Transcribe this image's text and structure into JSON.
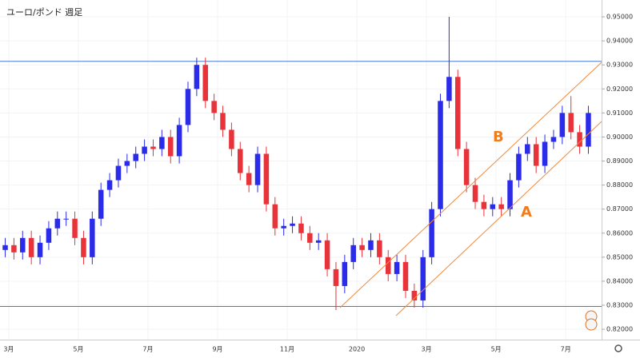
{
  "chart_data": {
    "type": "candlestick",
    "title": "ユーロ/ポンド 週足",
    "annotations": [
      "B",
      "A"
    ],
    "x": [
      1.9,
      2.15,
      2.4,
      2.65,
      2.9,
      3.15,
      3.4,
      3.65,
      3.9,
      4.15,
      4.4,
      4.65,
      4.9,
      5.15,
      5.4,
      5.65,
      5.9,
      6.15,
      6.4,
      6.65,
      6.9,
      7.15,
      7.4,
      7.65,
      7.9,
      8.15,
      8.4,
      8.65,
      8.9,
      9.15,
      9.4,
      9.65,
      9.9,
      10.15,
      10.4,
      10.65,
      10.9,
      11.15,
      11.4,
      11.65,
      11.9,
      12.15,
      12.4,
      12.65,
      12.9,
      13.15,
      13.4,
      13.65,
      13.9,
      14.15,
      14.4,
      14.65,
      14.9,
      15.15,
      15.4,
      15.65,
      15.9,
      16.15,
      16.4,
      16.65,
      16.9,
      17.15,
      17.4,
      17.65,
      17.9,
      18.15,
      18.4,
      18.65
    ],
    "open": [
      0.853,
      0.855,
      0.852,
      0.858,
      0.85,
      0.856,
      0.862,
      0.866,
      0.866,
      0.858,
      0.85,
      0.866,
      0.878,
      0.882,
      0.888,
      0.89,
      0.893,
      0.896,
      0.895,
      0.9,
      0.892,
      0.905,
      0.92,
      0.93,
      0.915,
      0.91,
      0.903,
      0.895,
      0.885,
      0.88,
      0.893,
      0.872,
      0.862,
      0.863,
      0.864,
      0.86,
      0.856,
      0.857,
      0.845,
      0.838,
      0.848,
      0.855,
      0.853,
      0.857,
      0.85,
      0.843,
      0.848,
      0.836,
      0.832,
      0.85,
      0.87,
      0.915,
      0.925,
      0.895,
      0.88,
      0.873,
      0.87,
      0.872,
      0.87,
      0.882,
      0.893,
      0.897,
      0.888,
      0.898,
      0.9,
      0.91,
      0.902,
      0.896
    ],
    "high": [
      0.858,
      0.858,
      0.861,
      0.861,
      0.859,
      0.865,
      0.869,
      0.869,
      0.869,
      0.861,
      0.869,
      0.881,
      0.885,
      0.891,
      0.893,
      0.896,
      0.899,
      0.899,
      0.903,
      0.903,
      0.908,
      0.923,
      0.933,
      0.933,
      0.918,
      0.913,
      0.906,
      0.898,
      0.888,
      0.896,
      0.896,
      0.875,
      0.866,
      0.867,
      0.867,
      0.863,
      0.86,
      0.86,
      0.848,
      0.851,
      0.858,
      0.858,
      0.86,
      0.86,
      0.853,
      0.851,
      0.851,
      0.839,
      0.853,
      0.873,
      0.918,
      0.95,
      0.928,
      0.898,
      0.883,
      0.876,
      0.875,
      0.875,
      0.885,
      0.896,
      0.9,
      0.9,
      0.901,
      0.903,
      0.913,
      0.917,
      0.905,
      0.913
    ],
    "low": [
      0.85,
      0.849,
      0.849,
      0.847,
      0.847,
      0.853,
      0.859,
      0.863,
      0.855,
      0.847,
      0.847,
      0.863,
      0.875,
      0.879,
      0.885,
      0.887,
      0.89,
      0.892,
      0.892,
      0.889,
      0.889,
      0.902,
      0.917,
      0.912,
      0.907,
      0.9,
      0.892,
      0.882,
      0.877,
      0.877,
      0.869,
      0.859,
      0.859,
      0.86,
      0.857,
      0.853,
      0.853,
      0.842,
      0.828,
      0.835,
      0.845,
      0.85,
      0.85,
      0.847,
      0.84,
      0.84,
      0.833,
      0.829,
      0.829,
      0.847,
      0.867,
      0.912,
      0.892,
      0.877,
      0.87,
      0.867,
      0.867,
      0.867,
      0.867,
      0.879,
      0.89,
      0.885,
      0.885,
      0.895,
      0.897,
      0.899,
      0.893,
      0.893
    ],
    "close": [
      0.855,
      0.852,
      0.858,
      0.85,
      0.856,
      0.862,
      0.866,
      0.866,
      0.858,
      0.85,
      0.866,
      0.878,
      0.882,
      0.888,
      0.89,
      0.893,
      0.896,
      0.895,
      0.9,
      0.892,
      0.905,
      0.92,
      0.93,
      0.915,
      0.91,
      0.903,
      0.895,
      0.885,
      0.88,
      0.893,
      0.872,
      0.862,
      0.863,
      0.864,
      0.86,
      0.856,
      0.857,
      0.845,
      0.838,
      0.848,
      0.855,
      0.853,
      0.857,
      0.85,
      0.843,
      0.848,
      0.836,
      0.832,
      0.85,
      0.87,
      0.915,
      0.925,
      0.895,
      0.88,
      0.873,
      0.87,
      0.872,
      0.87,
      0.882,
      0.893,
      0.897,
      0.888,
      0.898,
      0.9,
      0.91,
      0.902,
      0.896,
      0.91
    ],
    "up_color": "#2b2bea",
    "down_color": "#e8333a",
    "hlines": [
      0.9315,
      0.8295
    ],
    "hline_color": "#4a78d0",
    "xlim": [
      1.75,
      19.03
    ],
    "xticks": [
      {
        "value": 2,
        "label": "3月"
      },
      {
        "value": 4,
        "label": "5月"
      },
      {
        "value": 6,
        "label": "7月"
      },
      {
        "value": 8,
        "label": "9月"
      },
      {
        "value": 10,
        "label": "11月"
      },
      {
        "value": 12,
        "label": "2020"
      },
      {
        "value": 14,
        "label": "3月"
      },
      {
        "value": 16,
        "label": "5月"
      },
      {
        "value": 18,
        "label": "7月"
      }
    ],
    "ylim": [
      0.8157,
      0.957
    ],
    "yticks": [
      {
        "value": 0.82,
        "label": "0.82000"
      },
      {
        "value": 0.83,
        "label": "0.83000"
      },
      {
        "value": 0.84,
        "label": "0.84000"
      },
      {
        "value": 0.85,
        "label": "0.85000"
      },
      {
        "value": 0.86,
        "label": "0.86000"
      },
      {
        "value": 0.87,
        "label": "0.87000"
      },
      {
        "value": 0.88,
        "label": "0.88000"
      },
      {
        "value": 0.89,
        "label": "0.89000"
      },
      {
        "value": 0.9,
        "label": "0.90000"
      },
      {
        "value": 0.91,
        "label": "0.91000"
      },
      {
        "value": 0.92,
        "label": "0.92000"
      },
      {
        "value": 0.93,
        "label": "0.93000"
      },
      {
        "value": 0.94,
        "label": "0.94000"
      },
      {
        "value": 0.95,
        "label": "0.95000"
      }
    ],
    "grid": true
  }
}
